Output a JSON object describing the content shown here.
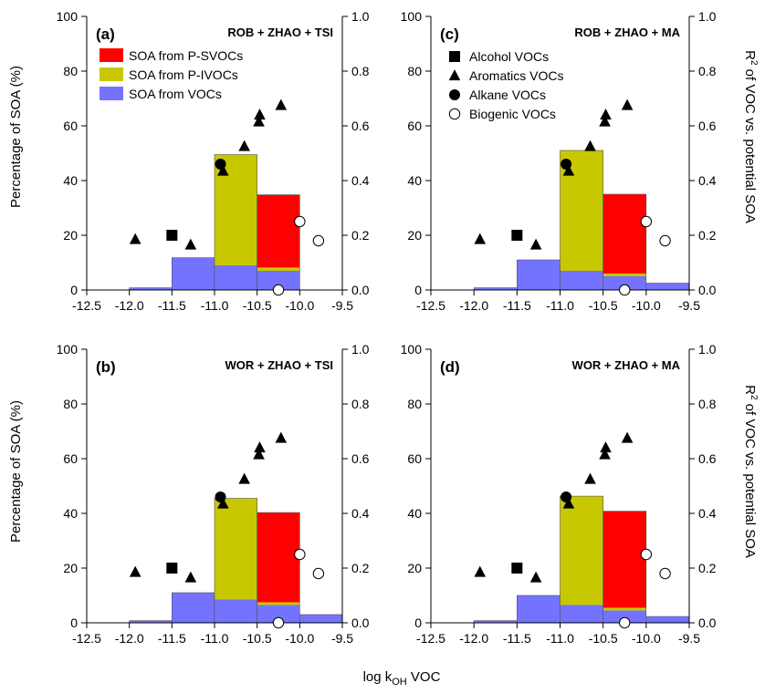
{
  "colors": {
    "p_svoc": "#ff0000",
    "p_ivoc": "#c8c800",
    "voc": "#7373ff",
    "marker": "#000000",
    "axis": "#000000"
  },
  "figure": {
    "xlabel_prefix": "log k",
    "xlabel_sub": "OH",
    "xlabel_suffix": " VOC",
    "ylabel_left": "Percentage of SOA (%)",
    "ylabel_right_pre": "R",
    "ylabel_right_sup": "2",
    "ylabel_right_post": " of VOC vs. potential SOA"
  },
  "legend_bars": [
    {
      "label": "SOA from P-SVOCs",
      "color_key": "p_svoc"
    },
    {
      "label": "SOA from P-IVOCs",
      "color_key": "p_ivoc"
    },
    {
      "label": "SOA from VOCs",
      "color_key": "voc"
    }
  ],
  "legend_markers": [
    {
      "label": "Alcohol VOCs",
      "shape": "square"
    },
    {
      "label": "Aromatics VOCs",
      "shape": "triangle"
    },
    {
      "label": "Alkane VOCs",
      "shape": "circle"
    },
    {
      "label": "Biogenic VOCs",
      "shape": "open-circle"
    }
  ],
  "chart_data": [
    {
      "id": "a",
      "panel_label": "(a)",
      "title": "ROB + ZHAO + TSI",
      "type": "bar",
      "x_ticks": [
        "-12.5",
        "-12.0",
        "-11.5",
        "-11.0",
        "-10.5",
        "-10.0",
        "-9.5"
      ],
      "xlim": [
        -12.5,
        -9.5
      ],
      "y_left_ticks": [
        "0",
        "20",
        "40",
        "60",
        "80",
        "100"
      ],
      "y_left_lim": [
        0,
        100
      ],
      "y_right_ticks": [
        "0.0",
        "0.2",
        "0.4",
        "0.6",
        "0.8",
        "1.0"
      ],
      "y_right_lim": [
        0,
        1.0
      ],
      "bins": [
        {
          "x0": -12.0,
          "x1": -11.5,
          "voc": 0.8,
          "p_ivoc": 0,
          "p_svoc": 0
        },
        {
          "x0": -11.5,
          "x1": -11.0,
          "voc": 11.8,
          "p_ivoc": 0,
          "p_svoc": 0
        },
        {
          "x0": -11.0,
          "x1": -10.5,
          "voc": 9.0,
          "p_ivoc": 40.5,
          "p_svoc": 0
        },
        {
          "x0": -10.5,
          "x1": -10.0,
          "voc": 7.0,
          "p_ivoc": 1.2,
          "p_svoc": 26.6
        }
      ],
      "markers": [
        {
          "group": "Alcohol VOCs",
          "shape": "square",
          "x": -11.5,
          "r2": 0.2
        },
        {
          "group": "Aromatics VOCs",
          "shape": "triangle",
          "x": -11.93,
          "r2": 0.185
        },
        {
          "group": "Aromatics VOCs",
          "shape": "triangle",
          "x": -11.28,
          "r2": 0.165
        },
        {
          "group": "Aromatics VOCs",
          "shape": "triangle",
          "x": -10.9,
          "r2": 0.435
        },
        {
          "group": "Aromatics VOCs",
          "shape": "triangle",
          "x": -10.65,
          "r2": 0.525
        },
        {
          "group": "Aromatics VOCs",
          "shape": "triangle",
          "x": -10.48,
          "r2": 0.615
        },
        {
          "group": "Aromatics VOCs",
          "shape": "triangle",
          "x": -10.47,
          "r2": 0.64
        },
        {
          "group": "Aromatics VOCs",
          "shape": "triangle",
          "x": -10.22,
          "r2": 0.675
        },
        {
          "group": "Alkane VOCs",
          "shape": "circle",
          "x": -10.93,
          "r2": 0.46
        },
        {
          "group": "Biogenic VOCs",
          "shape": "open-circle",
          "x": -10.0,
          "r2": 0.25
        },
        {
          "group": "Biogenic VOCs",
          "shape": "open-circle",
          "x": -9.78,
          "r2": 0.18
        },
        {
          "group": "Biogenic VOCs",
          "shape": "open-circle",
          "x": -10.25,
          "r2": 0.0
        }
      ],
      "legend": "bars"
    },
    {
      "id": "c",
      "panel_label": "(c)",
      "title": "ROB + ZHAO + MA",
      "type": "bar",
      "x_ticks": [
        "-12.5",
        "-12.0",
        "-11.5",
        "-11.0",
        "-10.5",
        "-10.0",
        "-9.5"
      ],
      "xlim": [
        -12.5,
        -9.5
      ],
      "y_left_ticks": [
        "0",
        "20",
        "40",
        "60",
        "80",
        "100"
      ],
      "y_left_lim": [
        0,
        100
      ],
      "y_right_ticks": [
        "0.0",
        "0.2",
        "0.4",
        "0.6",
        "0.8",
        "1.0"
      ],
      "y_right_lim": [
        0,
        1.0
      ],
      "bins": [
        {
          "x0": -12.0,
          "x1": -11.5,
          "voc": 0.8,
          "p_ivoc": 0,
          "p_svoc": 0
        },
        {
          "x0": -11.5,
          "x1": -11.0,
          "voc": 11.0,
          "p_ivoc": 0,
          "p_svoc": 0
        },
        {
          "x0": -11.0,
          "x1": -10.5,
          "voc": 7.0,
          "p_ivoc": 44.0,
          "p_svoc": 0
        },
        {
          "x0": -10.5,
          "x1": -10.0,
          "voc": 5.0,
          "p_ivoc": 1.0,
          "p_svoc": 29.0
        },
        {
          "x0": -10.0,
          "x1": -9.5,
          "voc": 2.5,
          "p_ivoc": 0,
          "p_svoc": 0
        }
      ],
      "markers": [
        {
          "group": "Alcohol VOCs",
          "shape": "square",
          "x": -11.5,
          "r2": 0.2
        },
        {
          "group": "Aromatics VOCs",
          "shape": "triangle",
          "x": -11.93,
          "r2": 0.185
        },
        {
          "group": "Aromatics VOCs",
          "shape": "triangle",
          "x": -11.28,
          "r2": 0.165
        },
        {
          "group": "Aromatics VOCs",
          "shape": "triangle",
          "x": -10.9,
          "r2": 0.435
        },
        {
          "group": "Aromatics VOCs",
          "shape": "triangle",
          "x": -10.65,
          "r2": 0.525
        },
        {
          "group": "Aromatics VOCs",
          "shape": "triangle",
          "x": -10.48,
          "r2": 0.615
        },
        {
          "group": "Aromatics VOCs",
          "shape": "triangle",
          "x": -10.47,
          "r2": 0.64
        },
        {
          "group": "Aromatics VOCs",
          "shape": "triangle",
          "x": -10.22,
          "r2": 0.675
        },
        {
          "group": "Alkane VOCs",
          "shape": "circle",
          "x": -10.93,
          "r2": 0.46
        },
        {
          "group": "Biogenic VOCs",
          "shape": "open-circle",
          "x": -10.0,
          "r2": 0.25
        },
        {
          "group": "Biogenic VOCs",
          "shape": "open-circle",
          "x": -9.78,
          "r2": 0.18
        },
        {
          "group": "Biogenic VOCs",
          "shape": "open-circle",
          "x": -10.25,
          "r2": 0.0
        }
      ],
      "legend": "markers"
    },
    {
      "id": "b",
      "panel_label": "(b)",
      "title": "WOR + ZHAO + TSI",
      "type": "bar",
      "x_ticks": [
        "-12.5",
        "-12.0",
        "-11.5",
        "-11.0",
        "-10.5",
        "-10.0",
        "-9.5"
      ],
      "xlim": [
        -12.5,
        -9.5
      ],
      "y_left_ticks": [
        "0",
        "20",
        "40",
        "60",
        "80",
        "100"
      ],
      "y_left_lim": [
        0,
        100
      ],
      "y_right_ticks": [
        "0.0",
        "0.2",
        "0.4",
        "0.6",
        "0.8",
        "1.0"
      ],
      "y_right_lim": [
        0,
        1.0
      ],
      "bins": [
        {
          "x0": -12.0,
          "x1": -11.5,
          "voc": 0.8,
          "p_ivoc": 0,
          "p_svoc": 0
        },
        {
          "x0": -11.5,
          "x1": -11.0,
          "voc": 11.0,
          "p_ivoc": 0,
          "p_svoc": 0
        },
        {
          "x0": -11.0,
          "x1": -10.5,
          "voc": 8.5,
          "p_ivoc": 37.0,
          "p_svoc": 0
        },
        {
          "x0": -10.5,
          "x1": -10.0,
          "voc": 6.5,
          "p_ivoc": 1.0,
          "p_svoc": 32.8
        },
        {
          "x0": -10.0,
          "x1": -9.5,
          "voc": 3.0,
          "p_ivoc": 0,
          "p_svoc": 0
        }
      ],
      "markers": [
        {
          "group": "Alcohol VOCs",
          "shape": "square",
          "x": -11.5,
          "r2": 0.2
        },
        {
          "group": "Aromatics VOCs",
          "shape": "triangle",
          "x": -11.93,
          "r2": 0.185
        },
        {
          "group": "Aromatics VOCs",
          "shape": "triangle",
          "x": -11.28,
          "r2": 0.165
        },
        {
          "group": "Aromatics VOCs",
          "shape": "triangle",
          "x": -10.9,
          "r2": 0.435
        },
        {
          "group": "Aromatics VOCs",
          "shape": "triangle",
          "x": -10.65,
          "r2": 0.525
        },
        {
          "group": "Aromatics VOCs",
          "shape": "triangle",
          "x": -10.48,
          "r2": 0.615
        },
        {
          "group": "Aromatics VOCs",
          "shape": "triangle",
          "x": -10.47,
          "r2": 0.64
        },
        {
          "group": "Aromatics VOCs",
          "shape": "triangle",
          "x": -10.22,
          "r2": 0.675
        },
        {
          "group": "Alkane VOCs",
          "shape": "circle",
          "x": -10.93,
          "r2": 0.46
        },
        {
          "group": "Biogenic VOCs",
          "shape": "open-circle",
          "x": -10.0,
          "r2": 0.25
        },
        {
          "group": "Biogenic VOCs",
          "shape": "open-circle",
          "x": -9.78,
          "r2": 0.18
        },
        {
          "group": "Biogenic VOCs",
          "shape": "open-circle",
          "x": -10.25,
          "r2": 0.0
        }
      ],
      "legend": "none"
    },
    {
      "id": "d",
      "panel_label": "(d)",
      "title": "WOR + ZHAO + MA",
      "type": "bar",
      "x_ticks": [
        "-12.5",
        "-12.0",
        "-11.5",
        "-11.0",
        "-10.5",
        "-10.0",
        "-9.5"
      ],
      "xlim": [
        -12.5,
        -9.5
      ],
      "y_left_ticks": [
        "0",
        "20",
        "40",
        "60",
        "80",
        "100"
      ],
      "y_left_lim": [
        0,
        100
      ],
      "y_right_ticks": [
        "0.0",
        "0.2",
        "0.4",
        "0.6",
        "0.8",
        "1.0"
      ],
      "y_right_lim": [
        0,
        1.0
      ],
      "bins": [
        {
          "x0": -12.0,
          "x1": -11.5,
          "voc": 0.8,
          "p_ivoc": 0,
          "p_svoc": 0
        },
        {
          "x0": -11.5,
          "x1": -11.0,
          "voc": 10.0,
          "p_ivoc": 0,
          "p_svoc": 0
        },
        {
          "x0": -11.0,
          "x1": -10.5,
          "voc": 6.5,
          "p_ivoc": 39.8,
          "p_svoc": 0
        },
        {
          "x0": -10.5,
          "x1": -10.0,
          "voc": 4.5,
          "p_ivoc": 1.0,
          "p_svoc": 35.3
        },
        {
          "x0": -10.0,
          "x1": -9.5,
          "voc": 2.3,
          "p_ivoc": 0,
          "p_svoc": 0
        }
      ],
      "markers": [
        {
          "group": "Alcohol VOCs",
          "shape": "square",
          "x": -11.5,
          "r2": 0.2
        },
        {
          "group": "Aromatics VOCs",
          "shape": "triangle",
          "x": -11.93,
          "r2": 0.185
        },
        {
          "group": "Aromatics VOCs",
          "shape": "triangle",
          "x": -11.28,
          "r2": 0.165
        },
        {
          "group": "Aromatics VOCs",
          "shape": "triangle",
          "x": -10.9,
          "r2": 0.435
        },
        {
          "group": "Aromatics VOCs",
          "shape": "triangle",
          "x": -10.65,
          "r2": 0.525
        },
        {
          "group": "Aromatics VOCs",
          "shape": "triangle",
          "x": -10.48,
          "r2": 0.615
        },
        {
          "group": "Aromatics VOCs",
          "shape": "triangle",
          "x": -10.47,
          "r2": 0.64
        },
        {
          "group": "Aromatics VOCs",
          "shape": "triangle",
          "x": -10.22,
          "r2": 0.675
        },
        {
          "group": "Alkane VOCs",
          "shape": "circle",
          "x": -10.93,
          "r2": 0.46
        },
        {
          "group": "Biogenic VOCs",
          "shape": "open-circle",
          "x": -10.0,
          "r2": 0.25
        },
        {
          "group": "Biogenic VOCs",
          "shape": "open-circle",
          "x": -9.78,
          "r2": 0.18
        },
        {
          "group": "Biogenic VOCs",
          "shape": "open-circle",
          "x": -10.25,
          "r2": 0.0
        }
      ],
      "legend": "none"
    }
  ]
}
